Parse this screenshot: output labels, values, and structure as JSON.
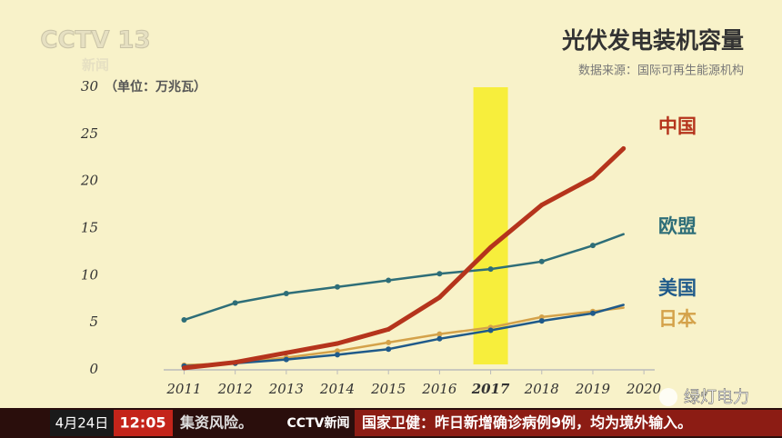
{
  "chart_data": {
    "type": "line",
    "title": "光伏发电装机容量",
    "source": "数据来源：国际可再生能源机构",
    "unit": "（单位：万兆瓦）",
    "x": [
      2011,
      2012,
      2013,
      2014,
      2015,
      2016,
      2017,
      2018,
      2019,
      2019.6
    ],
    "series": [
      {
        "name": "中国",
        "color": "#b5341c",
        "values": [
          0.2,
          0.8,
          1.8,
          2.8,
          4.3,
          7.7,
          13.0,
          17.5,
          20.4,
          23.5
        ]
      },
      {
        "name": "欧盟",
        "color": "#2e6e78",
        "values": [
          5.3,
          7.1,
          8.1,
          8.8,
          9.5,
          10.2,
          10.7,
          11.5,
          13.2,
          14.4
        ]
      },
      {
        "name": "美国",
        "color": "#1f5a8a",
        "values": [
          0.4,
          0.7,
          1.1,
          1.6,
          2.2,
          3.3,
          4.2,
          5.2,
          6.0,
          6.9
        ]
      },
      {
        "name": "日本",
        "color": "#d4a24a",
        "values": [
          0.5,
          0.7,
          1.3,
          2.0,
          2.9,
          3.8,
          4.5,
          5.6,
          6.2,
          6.6
        ]
      }
    ],
    "xlim": [
      2010.6,
      2020.3
    ],
    "ylim": [
      0,
      30
    ],
    "xticks": [
      2011,
      2012,
      2013,
      2014,
      2015,
      2016,
      2017,
      2018,
      2019,
      2020
    ],
    "yticks": [
      0,
      5,
      10,
      15,
      20,
      25,
      30
    ],
    "highlight_x": 2017,
    "highlight_color": "#f7ee3c",
    "grid": false
  },
  "logo": {
    "channel": "CCTV 13",
    "name": "新闻"
  },
  "ticker": {
    "date": "4月24日",
    "time": "12:05",
    "prev": "集资风险。",
    "brand": "CCTV新闻",
    "headline": "国家卫健：昨日新增确诊病例9例，均为境外输入。"
  },
  "watermark": "绿灯电力"
}
